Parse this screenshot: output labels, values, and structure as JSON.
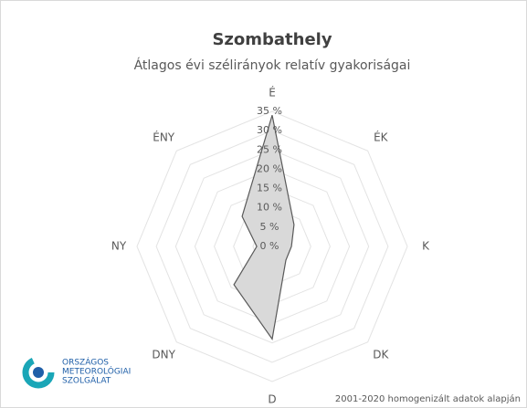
{
  "chart_data": {
    "type": "radar",
    "title": "Szombathely",
    "subtitle": "Átlagos évi szélirányok relatív gyakoriságai",
    "categories": [
      "É",
      "ÉK",
      "K",
      "DK",
      "D",
      "DNY",
      "NY",
      "ÉNY"
    ],
    "series": [
      {
        "name": "Szombathely",
        "color": "#d9d9d9",
        "stroke": "#595959",
        "values": [
          34,
          8,
          5,
          5,
          24,
          14,
          4,
          11
        ]
      }
    ],
    "ylim": [
      0,
      35
    ],
    "yticks": [
      {
        "value": 0,
        "label": "0 %"
      },
      {
        "value": 5,
        "label": "5 %"
      },
      {
        "value": 10,
        "label": "10 %"
      },
      {
        "value": 15,
        "label": "15 %"
      },
      {
        "value": 20,
        "label": "20 %"
      },
      {
        "value": 25,
        "label": "25 %"
      },
      {
        "value": 30,
        "label": "30 %"
      },
      {
        "value": 35,
        "label": "35 %"
      }
    ],
    "grid": true,
    "logo": [
      "ORSZÁGOS",
      "METEOROLÓGIAI",
      "SZOLGÁLAT"
    ],
    "footnote": "2001-2020 homogenizált adatok alapján"
  }
}
